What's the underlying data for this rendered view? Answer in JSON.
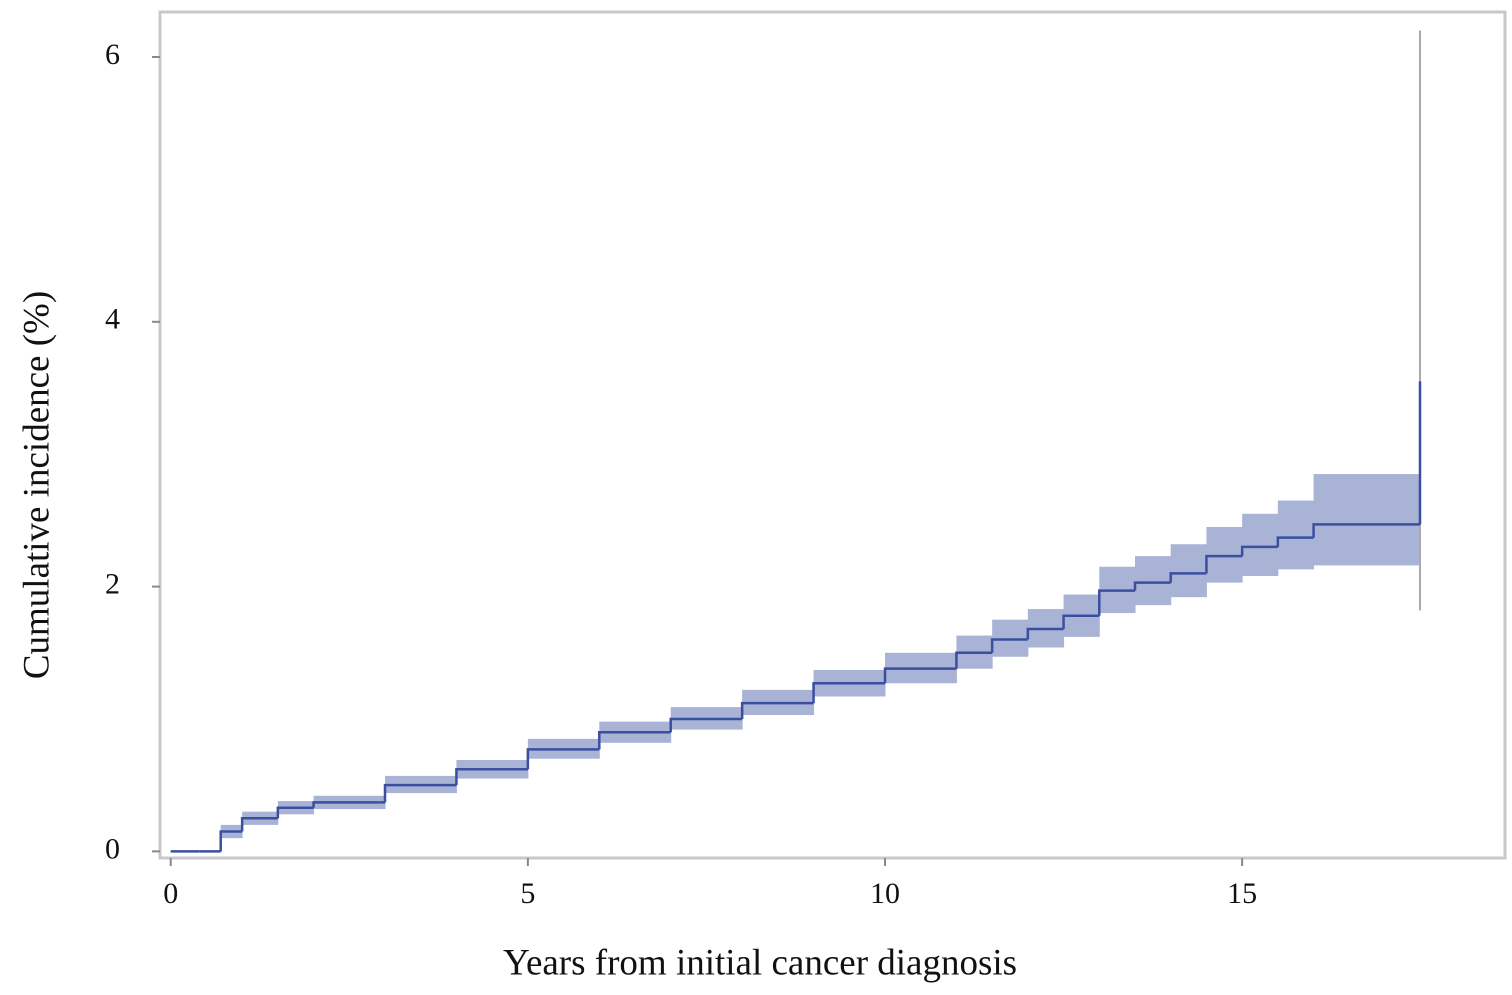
{
  "chart_data": {
    "type": "line",
    "x_label": "Years from initial cancer diagnosis",
    "y_label": "Cumulative incidence (%)",
    "x": [
      0,
      0.4,
      0.7,
      1.0,
      1.5,
      2,
      3,
      4,
      5,
      6,
      7,
      8,
      9,
      10,
      11,
      11.5,
      12,
      12.5,
      13,
      13.5,
      14,
      14.5,
      15,
      15.5,
      16,
      17.49
    ],
    "series": [
      {
        "color": "#3a4fa0",
        "values": [
          0,
          0,
          0.15,
          0.25,
          0.33,
          0.37,
          0.5,
          0.62,
          0.77,
          0.9,
          1.0,
          1.12,
          1.27,
          1.38,
          1.5,
          1.6,
          1.68,
          1.78,
          1.97,
          2.03,
          2.1,
          2.23,
          2.3,
          2.37,
          2.47,
          3.55
        ]
      }
    ],
    "lower": [
      0,
      0,
      0.1,
      0.2,
      0.28,
      0.32,
      0.44,
      0.55,
      0.7,
      0.82,
      0.92,
      1.03,
      1.17,
      1.27,
      1.38,
      1.47,
      1.54,
      1.62,
      1.8,
      1.86,
      1.92,
      2.03,
      2.08,
      2.13,
      2.16,
      1.82
    ],
    "upper": [
      0,
      0,
      0.2,
      0.3,
      0.38,
      0.42,
      0.57,
      0.69,
      0.85,
      0.98,
      1.09,
      1.22,
      1.37,
      1.5,
      1.63,
      1.75,
      1.83,
      1.94,
      2.15,
      2.23,
      2.32,
      2.45,
      2.55,
      2.65,
      2.85,
      6.2
    ],
    "band_color": "#a9b3d6",
    "xlim": [
      -0.15,
      18.68
    ],
    "ylim": [
      -0.05,
      6.34
    ],
    "xticks": [
      0,
      5,
      10,
      15
    ],
    "yticks": [
      0,
      2,
      4,
      6
    ]
  }
}
